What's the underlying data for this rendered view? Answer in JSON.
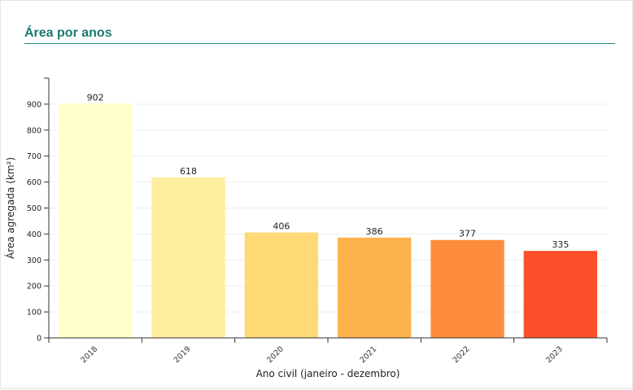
{
  "panel": {
    "title": "Área por anos"
  },
  "chart_data": {
    "type": "bar",
    "categories": [
      "2018",
      "2019",
      "2020",
      "2021",
      "2022",
      "2023"
    ],
    "values": [
      902,
      618,
      406,
      386,
      377,
      335
    ],
    "colors": [
      "#ffffcc",
      "#ffeda0",
      "#fed976",
      "#feb24c",
      "#fd8d3c",
      "#fc4e2a"
    ],
    "xlabel": "Ano civil (janeiro - dezembro)",
    "ylabel": "Área agregada (km²)",
    "ylim": [
      0,
      1000
    ],
    "yticks": [
      0,
      100,
      200,
      300,
      400,
      500,
      600,
      700,
      800,
      900
    ],
    "grid": true,
    "legend": "none"
  }
}
